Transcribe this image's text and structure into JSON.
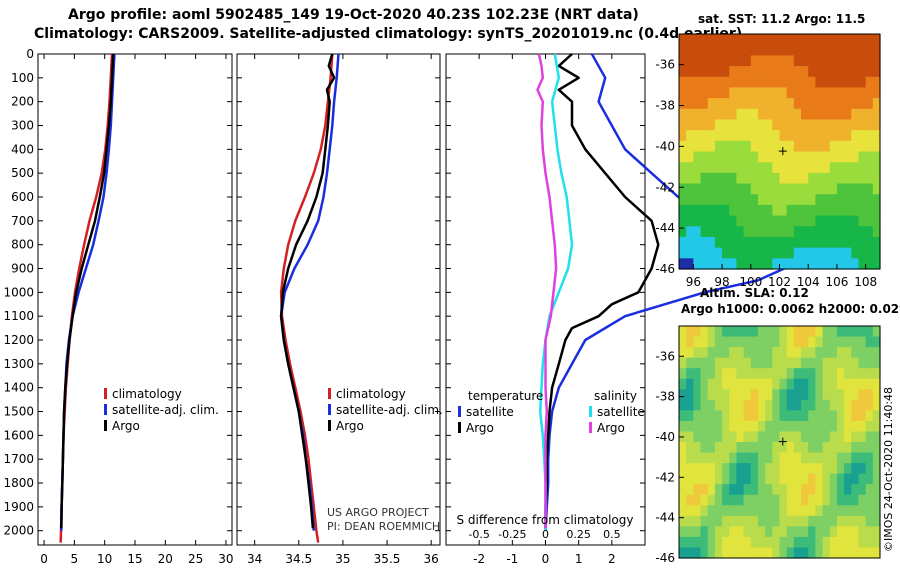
{
  "header": {
    "line1": "Argo profile: aoml 5902485_149 19-Oct-2020 40.23S 102.23E (NRT data)",
    "line2": "Climatology: CARS2009. Satellite-adjusted climatology: synTS_20201019.nc (0.4d earlier)"
  },
  "credits": {
    "line1": "US ARGO PROJECT",
    "line2": "PI: DEAN ROEMMICH"
  },
  "stamp": "©IMOS 24-Oct-2020 11:40:48",
  "colors": {
    "climatology": "#d42020",
    "satellite": "#1a2ee0",
    "argo": "#000000",
    "satellite_s": "#20e0f0",
    "argo_s": "#e040e0"
  },
  "depth_axis": {
    "ticks": [
      0,
      100,
      200,
      300,
      400,
      500,
      600,
      700,
      800,
      900,
      1000,
      1100,
      1200,
      1300,
      1400,
      1500,
      1600,
      1700,
      1800,
      1900,
      2000
    ],
    "range": [
      0,
      2060
    ]
  },
  "chart_data": [
    {
      "type": "line",
      "name": "temperature",
      "xlim": [
        -1,
        31
      ],
      "xticks": [
        0,
        5,
        10,
        15,
        20,
        25,
        30
      ],
      "ylabel": "depth (dbar)",
      "legend": [
        "climatology",
        "satellite-adj. clim.",
        "Argo"
      ],
      "series": [
        {
          "name": "climatology",
          "color": "#d42020",
          "depth": [
            0,
            100,
            200,
            300,
            400,
            500,
            600,
            700,
            800,
            900,
            1000,
            1100,
            1200,
            1300,
            1400,
            1500,
            1600,
            1700,
            1800,
            1900,
            2000,
            2050
          ],
          "values": [
            11.2,
            11.0,
            10.8,
            10.5,
            10.1,
            9.5,
            8.6,
            7.5,
            6.6,
            5.8,
            5.1,
            4.6,
            4.2,
            3.9,
            3.6,
            3.4,
            3.2,
            3.1,
            3.0,
            2.9,
            2.8,
            2.75
          ]
        },
        {
          "name": "satellite-adj. clim.",
          "color": "#1a2ee0",
          "depth": [
            0,
            100,
            200,
            300,
            400,
            500,
            600,
            700,
            800,
            900,
            1000,
            1100,
            1200,
            1300,
            1400,
            1500,
            1600,
            1700,
            1800,
            1900,
            2000
          ],
          "values": [
            11.6,
            11.4,
            11.2,
            11.0,
            10.7,
            10.3,
            9.8,
            9.0,
            8.1,
            6.9,
            5.7,
            4.7,
            4.1,
            3.7,
            3.5,
            3.3,
            3.2,
            3.1,
            3.0,
            2.9,
            2.85
          ]
        },
        {
          "name": "Argo",
          "color": "#000000",
          "depth": [
            0,
            100,
            200,
            300,
            400,
            500,
            600,
            700,
            800,
            900,
            1000,
            1100,
            1200,
            1300,
            1400,
            1500,
            1600,
            1700,
            1800,
            1900,
            1990
          ],
          "values": [
            11.4,
            11.2,
            11.0,
            10.7,
            10.3,
            9.9,
            9.2,
            8.4,
            7.3,
            6.2,
            5.3,
            4.7,
            4.2,
            3.8,
            3.5,
            3.3,
            3.2,
            3.1,
            3.0,
            2.9,
            2.85
          ]
        }
      ]
    },
    {
      "type": "line",
      "name": "salinity",
      "xlim": [
        33.8,
        36.1
      ],
      "xticks": [
        34,
        34.5,
        35,
        35.5,
        36
      ],
      "legend": [
        "climatology",
        "satellite-adj. clim.",
        "Argo"
      ],
      "series": [
        {
          "name": "climatology",
          "color": "#d42020",
          "depth": [
            0,
            100,
            200,
            300,
            400,
            500,
            600,
            700,
            800,
            900,
            1000,
            1100,
            1200,
            1300,
            1400,
            1500,
            1600,
            1700,
            1800,
            1900,
            2000,
            2050
          ],
          "values": [
            34.88,
            34.86,
            34.83,
            34.8,
            34.75,
            34.67,
            34.57,
            34.46,
            34.38,
            34.33,
            34.3,
            34.31,
            34.35,
            34.4,
            34.46,
            34.52,
            34.57,
            34.61,
            34.64,
            34.67,
            34.7,
            34.72
          ]
        },
        {
          "name": "satellite-adj. clim.",
          "color": "#1a2ee0",
          "depth": [
            0,
            100,
            200,
            300,
            400,
            500,
            600,
            700,
            800,
            900,
            1000,
            1100,
            1200,
            1300,
            1400,
            1500,
            1600,
            1700,
            1800,
            1900,
            2000
          ],
          "values": [
            34.95,
            34.93,
            34.9,
            34.88,
            34.85,
            34.82,
            34.78,
            34.72,
            34.6,
            34.45,
            34.34,
            34.3,
            34.33,
            34.38,
            34.44,
            34.5,
            34.55,
            34.58,
            34.62,
            34.65,
            34.67
          ]
        },
        {
          "name": "Argo",
          "color": "#000000",
          "depth": [
            0,
            50,
            100,
            150,
            200,
            300,
            400,
            500,
            600,
            700,
            800,
            900,
            1000,
            1100,
            1200,
            1300,
            1400,
            1500,
            1600,
            1700,
            1800,
            1900,
            1990
          ],
          "values": [
            34.88,
            34.84,
            34.9,
            34.82,
            34.85,
            34.83,
            34.8,
            34.77,
            34.7,
            34.6,
            34.47,
            34.38,
            34.32,
            34.3,
            34.33,
            34.38,
            34.44,
            34.5,
            34.54,
            34.58,
            34.61,
            34.64,
            34.66
          ]
        }
      ]
    },
    {
      "type": "line",
      "name": "difference",
      "xlim": [
        -0.75,
        0.75
      ],
      "xticks": [
        -0.5,
        -0.25,
        0,
        0.25,
        0.5
      ],
      "xlabel": "S difference from climatology",
      "top_axis_labels": [
        "-2",
        "-1",
        "0",
        "1",
        "2"
      ],
      "top_axis_values": [
        -2,
        -1,
        0,
        1,
        2
      ],
      "legend_temperature": [
        "temperature",
        "satellite",
        "Argo"
      ],
      "legend_salinity": [
        "salinity",
        "satellite",
        "Argo"
      ],
      "series": [
        {
          "name": "temperature satellite",
          "color": "#1a2ee0",
          "depth": [
            0,
            100,
            200,
            300,
            400,
            500,
            600,
            700,
            800,
            850,
            900,
            950,
            1000,
            1100,
            1200,
            1300,
            1400,
            1500,
            1600,
            1700,
            1800,
            1900,
            2000
          ],
          "values": [
            0.35,
            0.45,
            0.4,
            0.5,
            0.6,
            0.8,
            1.0,
            1.2,
            1.6,
            1.8,
            1.8,
            1.6,
            1.2,
            0.6,
            0.3,
            0.2,
            0.1,
            0.05,
            0.03,
            0.02,
            0.02,
            0.01,
            0.0
          ]
        },
        {
          "name": "temperature Argo",
          "color": "#000000",
          "depth": [
            0,
            50,
            100,
            150,
            200,
            300,
            400,
            500,
            600,
            700,
            800,
            900,
            1000,
            1050,
            1100,
            1150,
            1200,
            1300,
            1400,
            1500,
            1600,
            1700,
            1800,
            1900,
            1990
          ],
          "values": [
            0.2,
            0.1,
            0.25,
            0.1,
            0.2,
            0.2,
            0.3,
            0.45,
            0.6,
            0.8,
            0.85,
            0.8,
            0.7,
            0.5,
            0.4,
            0.2,
            0.15,
            0.1,
            0.05,
            0.03,
            0.02,
            0.01,
            0.01,
            0.0,
            0.0
          ]
        },
        {
          "name": "salinity satellite",
          "color": "#20e0f0",
          "depth": [
            0,
            100,
            200,
            300,
            400,
            500,
            600,
            700,
            800,
            900,
            1000,
            1100,
            1200,
            1300,
            1400,
            1500,
            1600,
            1700,
            1800,
            1900,
            2000
          ],
          "values": [
            0.07,
            0.1,
            0.05,
            0.07,
            0.09,
            0.12,
            0.16,
            0.18,
            0.2,
            0.17,
            0.1,
            0.03,
            0.0,
            -0.02,
            -0.03,
            -0.04,
            -0.02,
            -0.01,
            0.0,
            0.0,
            0.0
          ]
        },
        {
          "name": "salinity Argo",
          "color": "#e040e0",
          "depth": [
            0,
            50,
            100,
            150,
            200,
            300,
            400,
            500,
            600,
            700,
            800,
            900,
            1000,
            1100,
            1200,
            1300,
            1400,
            1500,
            1600,
            1700,
            1800,
            1900,
            1990
          ],
          "values": [
            -0.05,
            -0.03,
            -0.02,
            -0.06,
            -0.02,
            -0.03,
            -0.02,
            0.0,
            0.03,
            0.05,
            0.07,
            0.08,
            0.06,
            0.04,
            0.0,
            0.0,
            0.0,
            0.01,
            0.0,
            0.0,
            0.0,
            0.0,
            0.0
          ]
        }
      ]
    },
    {
      "type": "heatmap",
      "name": "sst-map",
      "title": "sat. SST: 11.2 Argo: 11.5",
      "xlim": [
        95,
        109
      ],
      "ylim": [
        -46,
        -34.5
      ],
      "xticks": [
        96,
        98,
        100,
        102,
        104,
        106,
        108
      ],
      "yticks": [
        -36,
        -38,
        -40,
        -42,
        -44,
        -46
      ],
      "marker": {
        "lon": 102.23,
        "lat": -40.23
      }
    },
    {
      "type": "heatmap",
      "name": "sla-map",
      "title": "Altim. SLA: 0.12",
      "subtitle": "Argo h1000: 0.0062 h2000: 0.029",
      "xlim": [
        95,
        109
      ],
      "ylim": [
        -46,
        -34.5
      ],
      "yticks": [
        -36,
        -38,
        -40,
        -42,
        -44,
        -46
      ],
      "marker": {
        "lon": 102.23,
        "lat": -40.23
      }
    }
  ]
}
